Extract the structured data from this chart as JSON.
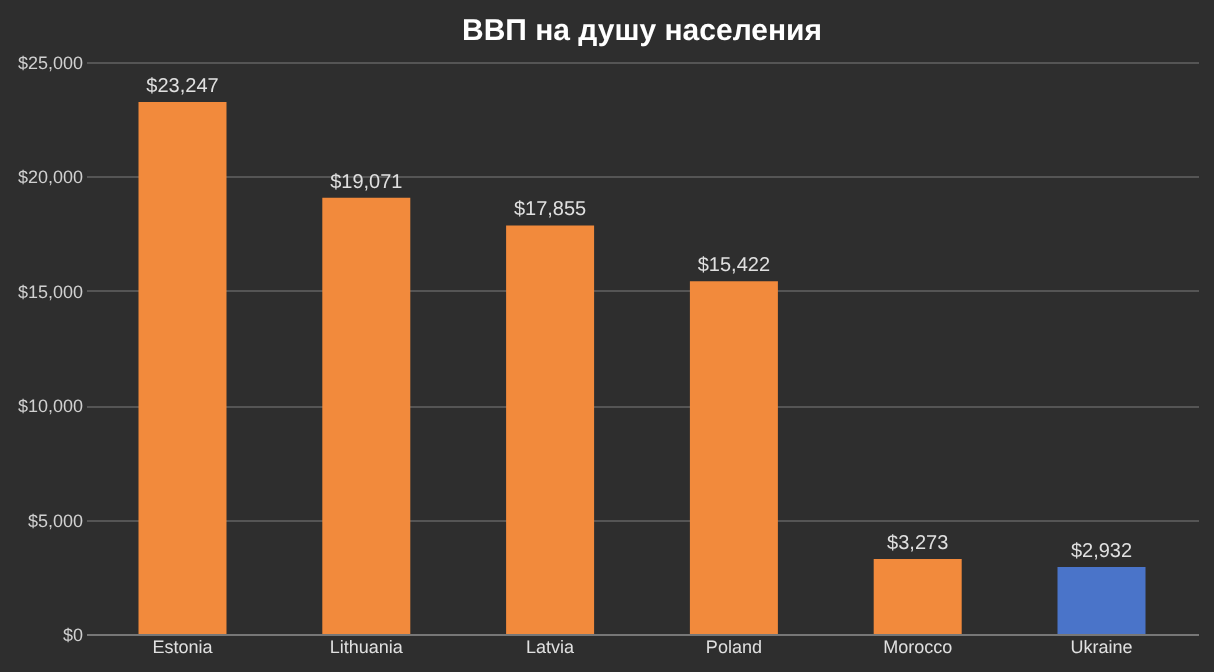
{
  "chart_data": {
    "type": "bar",
    "title": "ВВП на душу населения",
    "categories": [
      "Estonia",
      "Lithuania",
      "Latvia",
      "Poland",
      "Morocco",
      "Ukraine"
    ],
    "values": [
      23247,
      19071,
      17855,
      15422,
      3273,
      2932
    ],
    "colors": [
      "#f28a3c",
      "#f28a3c",
      "#f28a3c",
      "#f28a3c",
      "#f28a3c",
      "#4a74c9"
    ],
    "value_labels": [
      "$23,247",
      "$19,071",
      "$17,855",
      "$15,422",
      "$3,273",
      "$2,932"
    ],
    "ylim": [
      0,
      25000
    ],
    "yticks": [
      {
        "value": 0,
        "label": "$0"
      },
      {
        "value": 5000,
        "label": "$5,000"
      },
      {
        "value": 10000,
        "label": "$10,000"
      },
      {
        "value": 15000,
        "label": "$15,000"
      },
      {
        "value": 20000,
        "label": "$20,000"
      },
      {
        "value": 25000,
        "label": "$25,000"
      }
    ],
    "grid": "y"
  }
}
